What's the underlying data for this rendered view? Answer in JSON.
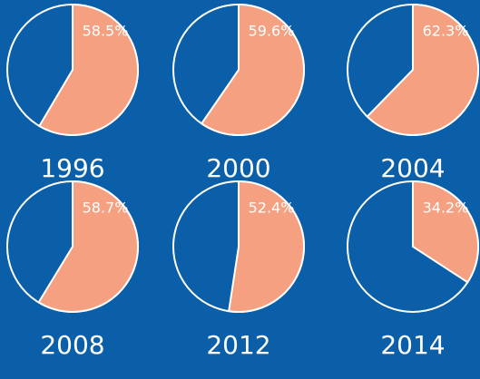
{
  "chart_data": [
    {
      "type": "pie",
      "title": "1996",
      "values": [
        58.5
      ],
      "value_labels": [
        "58.5%"
      ],
      "color": "#f5a080"
    },
    {
      "type": "pie",
      "title": "2000",
      "values": [
        59.6
      ],
      "value_labels": [
        "59.6%"
      ],
      "color": "#f5a080"
    },
    {
      "type": "pie",
      "title": "2004",
      "values": [
        62.3
      ],
      "value_labels": [
        "62.3%"
      ],
      "color": "#f5a080"
    },
    {
      "type": "pie",
      "title": "2008",
      "values": [
        58.7
      ],
      "value_labels": [
        "58.7%"
      ],
      "color": "#f5a080"
    },
    {
      "type": "pie",
      "title": "2012",
      "values": [
        52.4
      ],
      "value_labels": [
        "52.4%"
      ],
      "color": "#f5a080"
    },
    {
      "type": "pie",
      "title": "2014",
      "values": [
        34.2
      ],
      "value_labels": [
        "34.2%"
      ],
      "color": "#f5a080"
    }
  ]
}
